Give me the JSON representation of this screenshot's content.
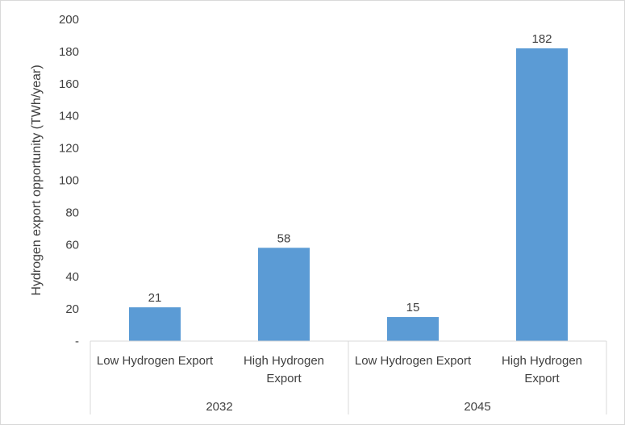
{
  "chart_data": {
    "type": "bar",
    "title": "",
    "ylabel": "Hydrogen export opportunity (TWh/year)",
    "xlabel": "",
    "ylim": [
      0,
      200
    ],
    "yticks": [
      "-",
      "20",
      "40",
      "60",
      "80",
      "100",
      "120",
      "140",
      "160",
      "180",
      "200"
    ],
    "groups": [
      {
        "label": "2032",
        "categories": [
          {
            "label_lines": [
              "Low Hydrogen Export"
            ],
            "value": 21,
            "value_label": "21"
          },
          {
            "label_lines": [
              "High Hydrogen",
              "Export"
            ],
            "value": 58,
            "value_label": "58"
          }
        ]
      },
      {
        "label": "2045",
        "categories": [
          {
            "label_lines": [
              "Low Hydrogen Export"
            ],
            "value": 15,
            "value_label": "15"
          },
          {
            "label_lines": [
              "High Hydrogen",
              "Export"
            ],
            "value": 182,
            "value_label": "182"
          }
        ]
      }
    ],
    "bar_color": "#5b9bd5",
    "grid": false,
    "legend": "none"
  }
}
